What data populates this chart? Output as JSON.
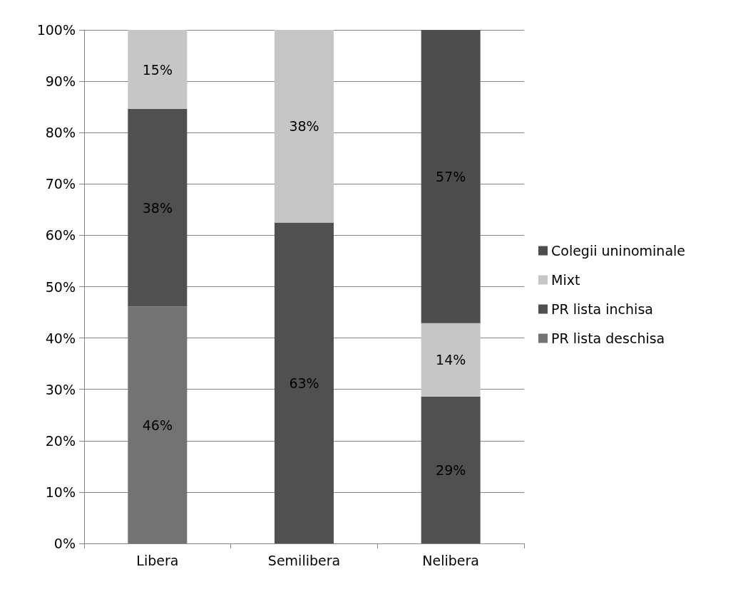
{
  "chart_data": {
    "type": "bar",
    "stacked": true,
    "categories": [
      "Libera",
      "Semilibera",
      "Nelibera"
    ],
    "series": [
      {
        "name": "PR lista deschisa",
        "color": "#737373",
        "values": [
          46.1,
          null,
          null
        ],
        "value_labels": [
          "46%",
          null,
          null
        ]
      },
      {
        "name": "PR lista inchisa",
        "color": "#505050",
        "values": [
          38.5,
          62.5,
          28.6
        ],
        "value_labels": [
          "38%",
          "63%",
          "29%"
        ]
      },
      {
        "name": "Mixt",
        "color": "#c6c6c6",
        "values": [
          15.4,
          37.5,
          14.3
        ],
        "value_labels": [
          "15%",
          "38%",
          "14%"
        ]
      },
      {
        "name": "Colegii uninominale",
        "color": "#4d4d4d",
        "values": [
          null,
          null,
          57.1
        ],
        "value_labels": [
          null,
          null,
          "57%"
        ]
      }
    ],
    "ylim": [
      0,
      100
    ],
    "yticks": [
      {
        "value": 0,
        "label": "0%"
      },
      {
        "value": 10,
        "label": "10%"
      },
      {
        "value": 20,
        "label": "20%"
      },
      {
        "value": 30,
        "label": "30%"
      },
      {
        "value": 40,
        "label": "40%"
      },
      {
        "value": 50,
        "label": "50%"
      },
      {
        "value": 60,
        "label": "60%"
      },
      {
        "value": 70,
        "label": "70%"
      },
      {
        "value": 80,
        "label": "80%"
      },
      {
        "value": 90,
        "label": "90%"
      },
      {
        "value": 100,
        "label": "100%"
      }
    ],
    "grid": "y",
    "legend": "right"
  }
}
